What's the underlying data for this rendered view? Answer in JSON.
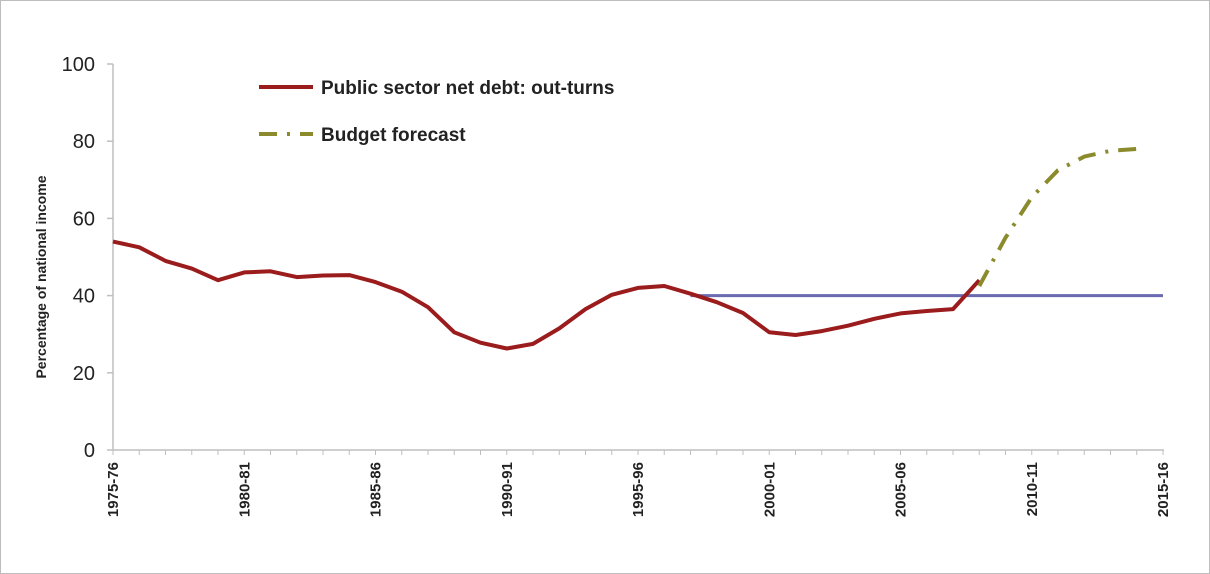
{
  "chart_data": {
    "type": "line",
    "title": "",
    "xlabel": "",
    "ylabel": "Percentage of national income",
    "ylim": [
      0,
      100
    ],
    "yticks": [
      0,
      20,
      40,
      60,
      80,
      100
    ],
    "x_tick_labels": [
      "1975-76",
      "1980-81",
      "1985-86",
      "1990-91",
      "1995-96",
      "2000-01",
      "2005-06",
      "2010-11",
      "2015-16"
    ],
    "grid": false,
    "legend_position": "top-left",
    "series": [
      {
        "name": "Public sector net debt: out-turns",
        "color": "#9b1c1c",
        "style": "solid",
        "x": [
          "1975-76",
          "1976-77",
          "1977-78",
          "1978-79",
          "1979-80",
          "1980-81",
          "1981-82",
          "1982-83",
          "1983-84",
          "1984-85",
          "1985-86",
          "1986-87",
          "1987-88",
          "1988-89",
          "1989-90",
          "1990-91",
          "1991-92",
          "1992-93",
          "1993-94",
          "1994-95",
          "1995-96",
          "1996-97",
          "1997-98",
          "1998-99",
          "1999-00",
          "2000-01",
          "2001-02",
          "2002-03",
          "2003-04",
          "2004-05",
          "2005-06",
          "2006-07",
          "2007-08",
          "2008-09"
        ],
        "values": [
          54,
          52.5,
          49,
          47,
          44,
          46,
          46.3,
          44.8,
          45.2,
          45.3,
          43.5,
          41,
          37,
          30.5,
          27.8,
          26.3,
          27.5,
          31.5,
          36.5,
          40.2,
          42,
          42.5,
          40.5,
          38.3,
          35.5,
          30.5,
          29.8,
          30.8,
          32.2,
          34,
          35.4,
          36,
          36.5,
          44
        ]
      },
      {
        "name": "Budget forecast",
        "color": "#8b8b2d",
        "style": "dash-dot",
        "x": [
          "2008-09",
          "2009-10",
          "2010-11",
          "2011-12",
          "2012-13",
          "2013-14",
          "2014-15"
        ],
        "values": [
          42.5,
          55,
          65.5,
          72.5,
          76,
          77.5,
          78
        ]
      },
      {
        "name": "",
        "color": "#6a6ab0",
        "style": "solid",
        "x": [
          "1997-98",
          "2015-16"
        ],
        "values": [
          40,
          40
        ]
      }
    ]
  }
}
